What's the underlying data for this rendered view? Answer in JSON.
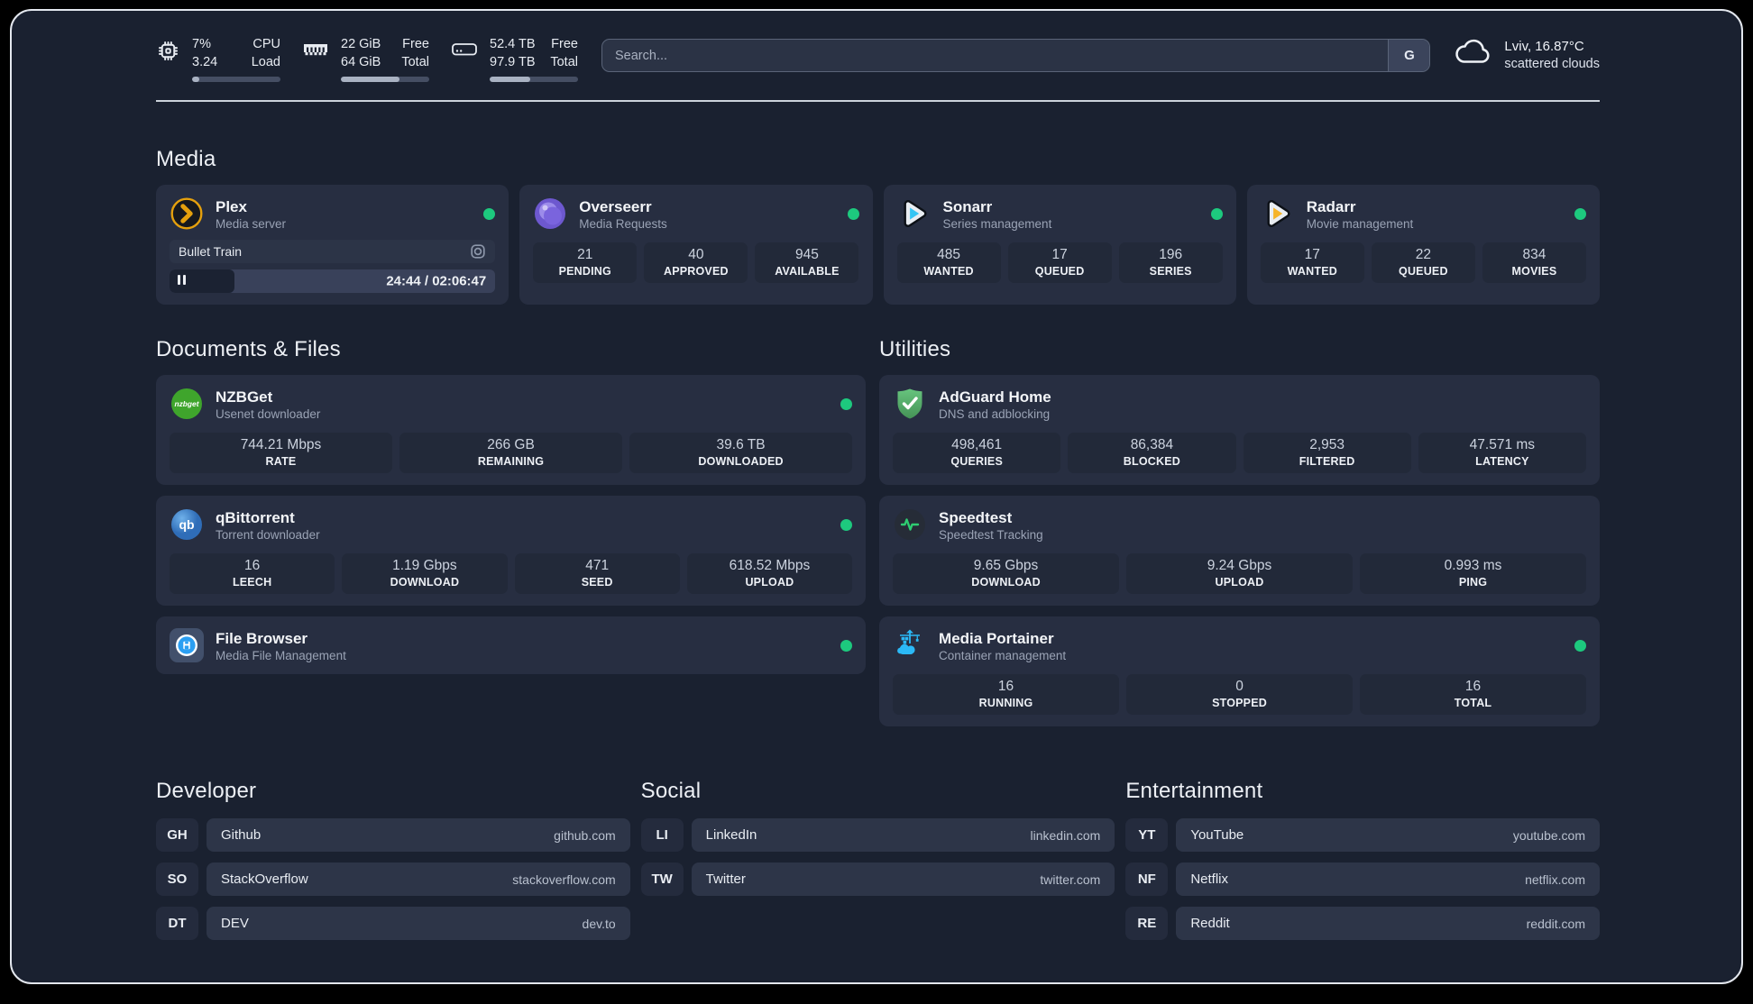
{
  "header": {
    "metrics": [
      {
        "name": "cpu",
        "rows": [
          {
            "value": "7%",
            "label": "CPU"
          },
          {
            "value": "3.24",
            "label": "Load"
          }
        ],
        "progress": 8
      },
      {
        "name": "memory",
        "rows": [
          {
            "value": "22 GiB",
            "label": "Free"
          },
          {
            "value": "64 GiB",
            "label": "Total"
          }
        ],
        "progress": 66
      },
      {
        "name": "storage",
        "rows": [
          {
            "value": "52.4 TB",
            "label": "Free"
          },
          {
            "value": "97.9 TB",
            "label": "Total"
          }
        ],
        "progress": 46
      }
    ],
    "search": {
      "placeholder": "Search...",
      "provider_label": "G"
    },
    "weather": {
      "location_temp": "Lviv, 16.87°C",
      "condition": "scattered clouds"
    }
  },
  "media": {
    "title": "Media",
    "plex": {
      "title": "Plex",
      "subtitle": "Media server",
      "online": true,
      "now_playing": {
        "title": "Bullet Train",
        "time": "24:44 / 02:06:47",
        "progress": 20
      }
    },
    "overseerr": {
      "title": "Overseerr",
      "subtitle": "Media Requests",
      "online": true,
      "stats": [
        {
          "value": "21",
          "label": "PENDING"
        },
        {
          "value": "40",
          "label": "APPROVED"
        },
        {
          "value": "945",
          "label": "AVAILABLE"
        }
      ]
    },
    "sonarr": {
      "title": "Sonarr",
      "subtitle": "Series management",
      "online": true,
      "stats": [
        {
          "value": "485",
          "label": "WANTED"
        },
        {
          "value": "17",
          "label": "QUEUED"
        },
        {
          "value": "196",
          "label": "SERIES"
        }
      ]
    },
    "radarr": {
      "title": "Radarr",
      "subtitle": "Movie management",
      "online": true,
      "stats": [
        {
          "value": "17",
          "label": "WANTED"
        },
        {
          "value": "22",
          "label": "QUEUED"
        },
        {
          "value": "834",
          "label": "MOVIES"
        }
      ]
    }
  },
  "documents": {
    "title": "Documents & Files",
    "nzbget": {
      "title": "NZBGet",
      "subtitle": "Usenet downloader",
      "online": true,
      "stats": [
        {
          "value": "744.21 Mbps",
          "label": "RATE"
        },
        {
          "value": "266 GB",
          "label": "REMAINING"
        },
        {
          "value": "39.6 TB",
          "label": "DOWNLOADED"
        }
      ]
    },
    "qbittorrent": {
      "title": "qBittorrent",
      "subtitle": "Torrent downloader",
      "online": true,
      "stats": [
        {
          "value": "16",
          "label": "LEECH"
        },
        {
          "value": "1.19 Gbps",
          "label": "DOWNLOAD"
        },
        {
          "value": "471",
          "label": "SEED"
        },
        {
          "value": "618.52 Mbps",
          "label": "UPLOAD"
        }
      ]
    },
    "filebrowser": {
      "title": "File Browser",
      "subtitle": "Media File Management",
      "online": true
    }
  },
  "utilities": {
    "title": "Utilities",
    "adguard": {
      "title": "AdGuard Home",
      "subtitle": "DNS and adblocking",
      "stats": [
        {
          "value": "498,461",
          "label": "QUERIES"
        },
        {
          "value": "86,384",
          "label": "BLOCKED"
        },
        {
          "value": "2,953",
          "label": "FILTERED"
        },
        {
          "value": "47.571 ms",
          "label": "LATENCY"
        }
      ]
    },
    "speedtest": {
      "title": "Speedtest",
      "subtitle": "Speedtest Tracking",
      "stats": [
        {
          "value": "9.65 Gbps",
          "label": "DOWNLOAD"
        },
        {
          "value": "9.24 Gbps",
          "label": "UPLOAD"
        },
        {
          "value": "0.993 ms",
          "label": "PING"
        }
      ]
    },
    "portainer": {
      "title": "Media Portainer",
      "subtitle": "Container management",
      "online": true,
      "stats": [
        {
          "value": "16",
          "label": "RUNNING"
        },
        {
          "value": "0",
          "label": "STOPPED"
        },
        {
          "value": "16",
          "label": "TOTAL"
        }
      ]
    }
  },
  "links": {
    "developer": {
      "title": "Developer",
      "items": [
        {
          "tag": "GH",
          "name": "Github",
          "url": "github.com"
        },
        {
          "tag": "SO",
          "name": "StackOverflow",
          "url": "stackoverflow.com"
        },
        {
          "tag": "DT",
          "name": "DEV",
          "url": "dev.to"
        }
      ]
    },
    "social": {
      "title": "Social",
      "items": [
        {
          "tag": "LI",
          "name": "LinkedIn",
          "url": "linkedin.com"
        },
        {
          "tag": "TW",
          "name": "Twitter",
          "url": "twitter.com"
        }
      ]
    },
    "entertainment": {
      "title": "Entertainment",
      "items": [
        {
          "tag": "YT",
          "name": "YouTube",
          "url": "youtube.com"
        },
        {
          "tag": "NF",
          "name": "Netflix",
          "url": "netflix.com"
        },
        {
          "tag": "RE",
          "name": "Reddit",
          "url": "reddit.com"
        }
      ]
    }
  },
  "icons": {
    "nzbget_label": "nzbget",
    "qbittorrent_label": "qb"
  },
  "colors": {
    "status_online": "#1dc97e",
    "plex": "#e5a00d",
    "sonarr": "#35c5f4",
    "radarr": "#f6b42a",
    "overseerr": "#7a64dd",
    "adguard": "#58b06d",
    "nzbget": "#3fa52c",
    "qbittorrent": "#3a77c2",
    "speedtest": "#2ecc71",
    "filebrowser": "#2b9ff2",
    "portainer": "#2bb9f7"
  }
}
